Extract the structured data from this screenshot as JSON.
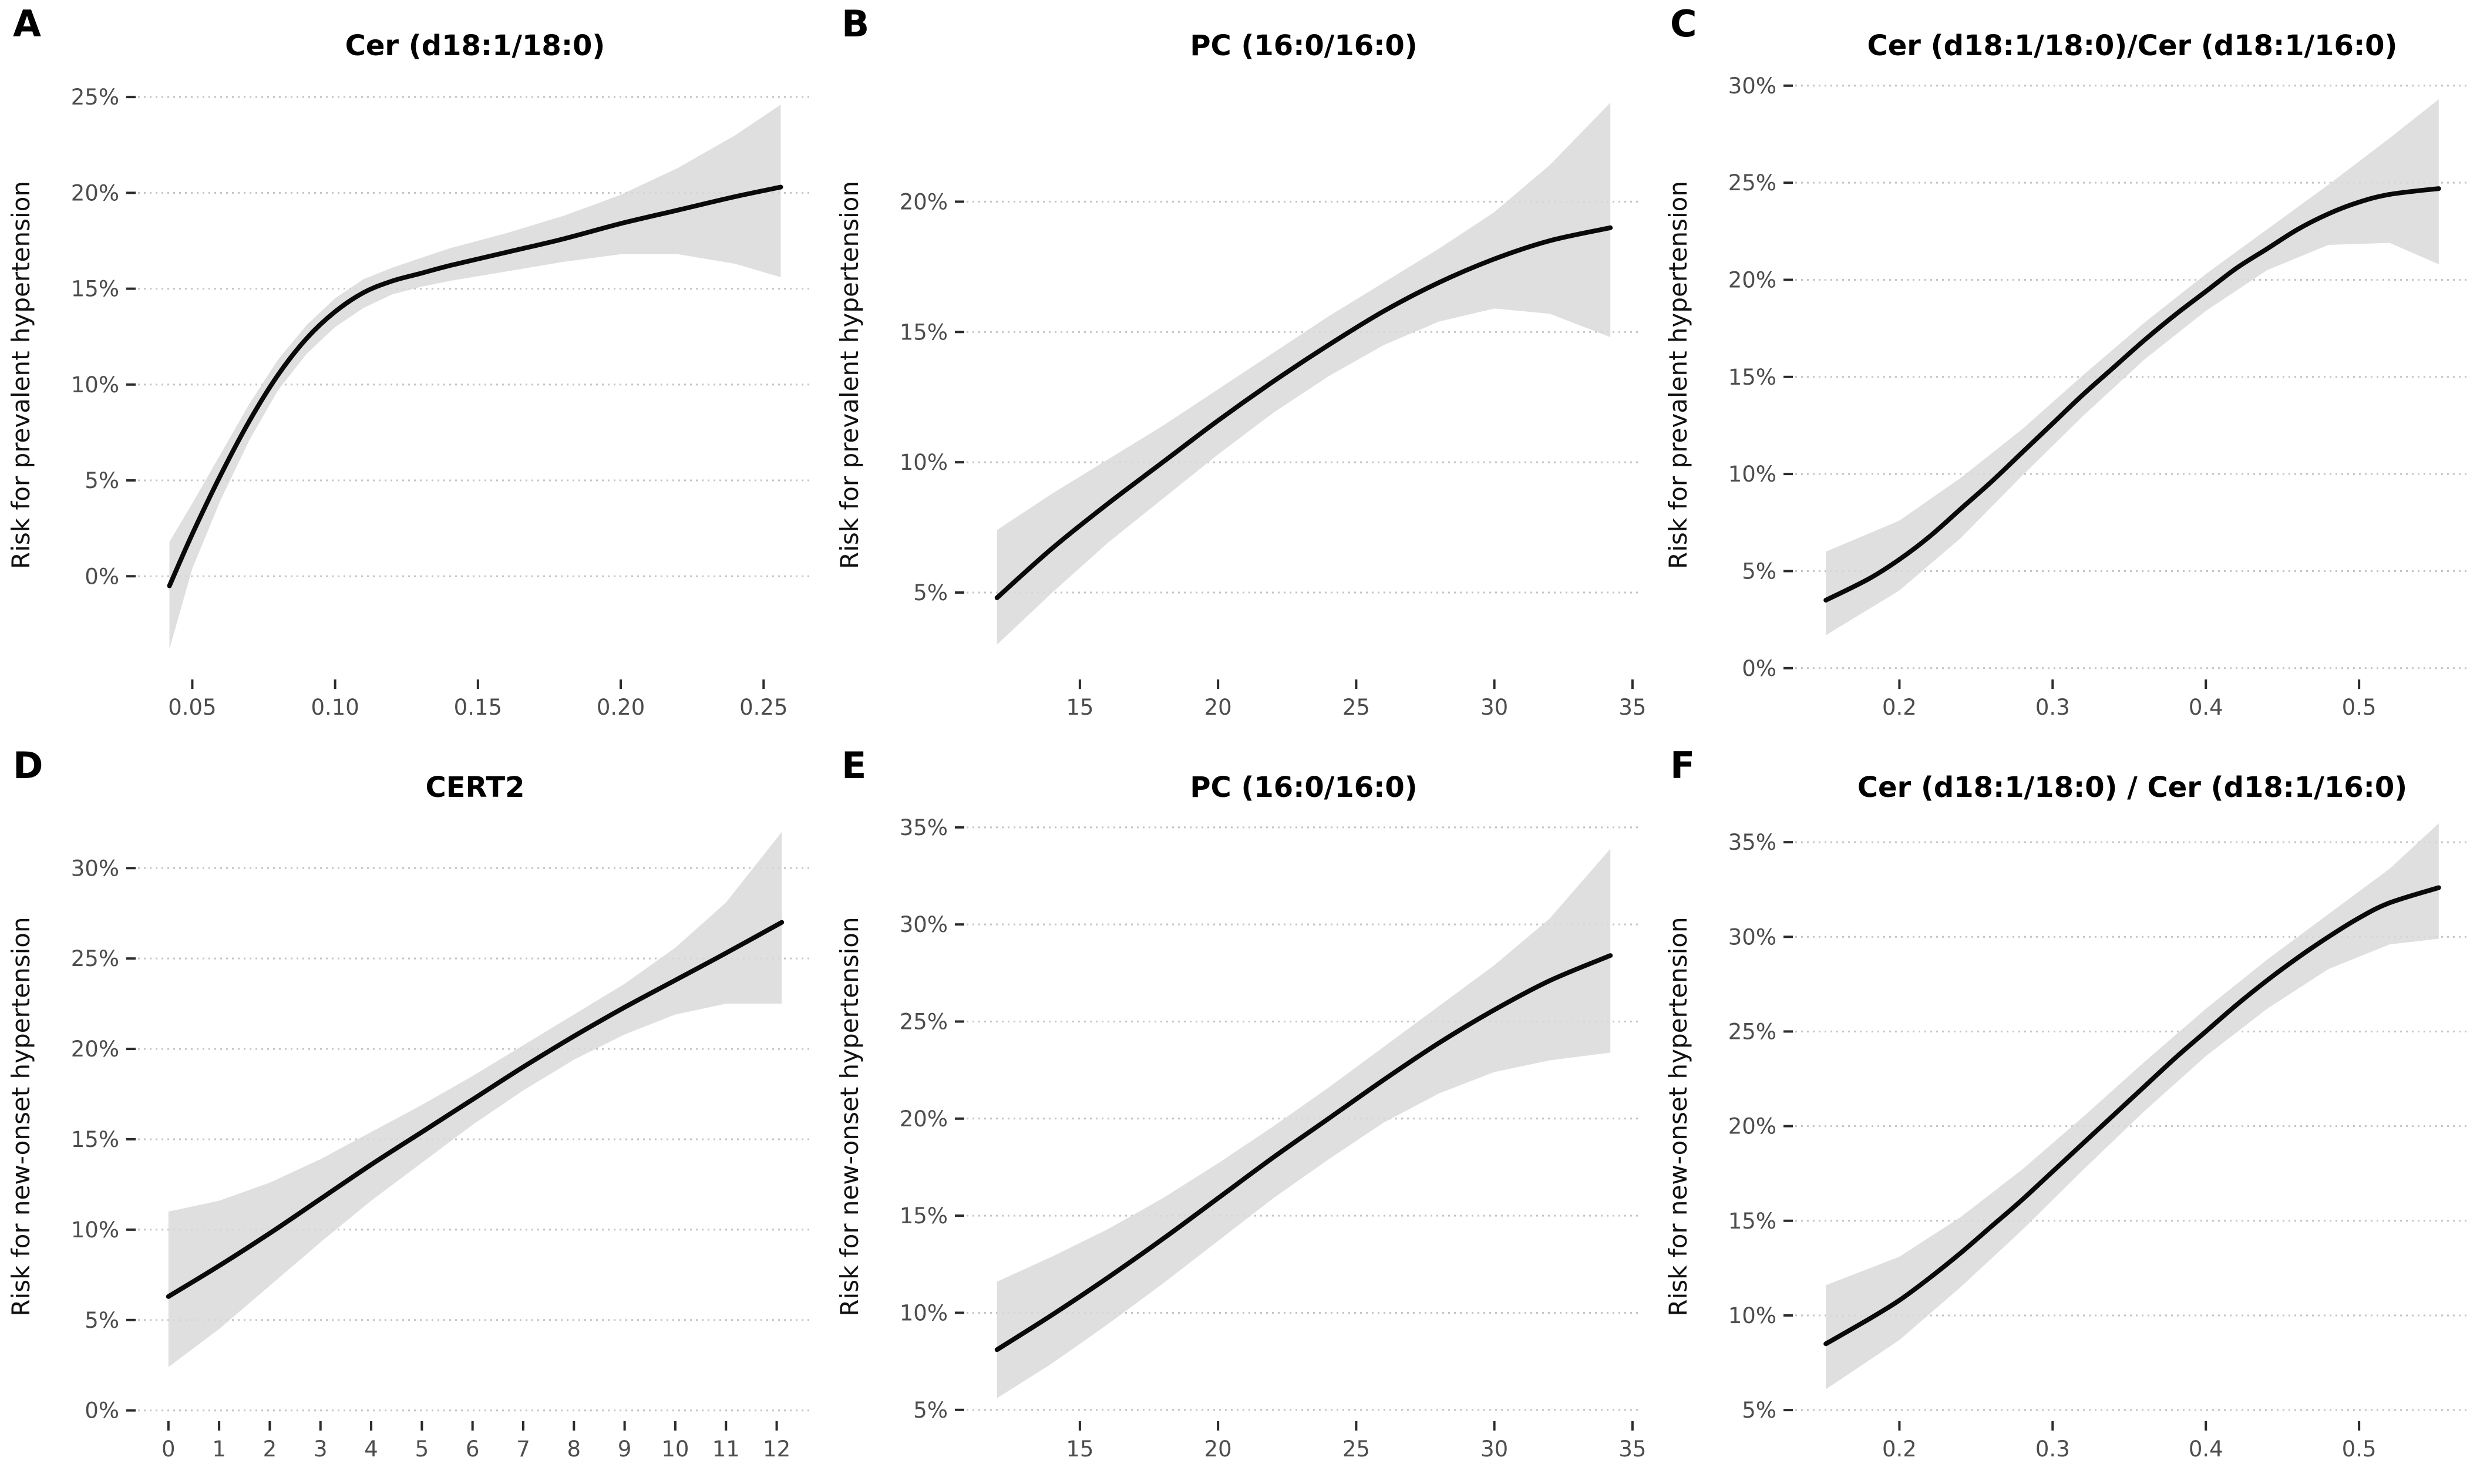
{
  "figure": {
    "background": "#ffffff",
    "styles": {
      "curve_color": "#0a0a0a",
      "band_color": "#d9d9d9",
      "band_opacity": 0.85,
      "gridline_color": "#c4c4c4",
      "tick_color": "#2b2b2b",
      "tick_label_color": "#4d4d4d",
      "axis_title_color": "#111111",
      "title_color": "#000000"
    }
  },
  "chart_data": [
    {
      "panel_letter": "A",
      "type": "line",
      "title": "Cer (d18:1/18:0)",
      "xlabel": "",
      "ylabel": "Risk for prevalent hypertension",
      "grid": "horizontal-dotted",
      "legend": "none",
      "xlim": [
        0.031,
        0.267
      ],
      "ylim": [
        -5.2,
        26.2
      ],
      "xticks": [
        0.05,
        0.1,
        0.15,
        0.2,
        0.25
      ],
      "xtick_labels": [
        "0.05",
        "0.10",
        "0.15",
        "0.20",
        "0.25"
      ],
      "yticks": [
        0,
        5,
        10,
        15,
        20,
        25
      ],
      "ytick_labels": [
        "0%",
        "5%",
        "10%",
        "15%",
        "20%",
        "25%"
      ],
      "series": [
        {
          "name": "estimated risk",
          "x": [
            0.042,
            0.05,
            0.06,
            0.07,
            0.08,
            0.09,
            0.1,
            0.11,
            0.12,
            0.13,
            0.14,
            0.16,
            0.18,
            0.2,
            0.22,
            0.24,
            0.256
          ],
          "y": [
            -0.5,
            2.2,
            5.3,
            8.1,
            10.5,
            12.4,
            13.8,
            14.8,
            15.4,
            15.8,
            16.2,
            16.9,
            17.6,
            18.4,
            19.1,
            19.8,
            20.3
          ]
        }
      ],
      "band": {
        "name": "95% confidence band",
        "x": [
          0.042,
          0.05,
          0.06,
          0.07,
          0.08,
          0.09,
          0.1,
          0.11,
          0.12,
          0.13,
          0.14,
          0.16,
          0.18,
          0.2,
          0.22,
          0.24,
          0.256
        ],
        "upper": [
          1.8,
          3.8,
          6.4,
          9.0,
          11.3,
          13.1,
          14.5,
          15.5,
          16.1,
          16.6,
          17.1,
          17.9,
          18.8,
          19.9,
          21.3,
          23.0,
          24.6
        ],
        "lower": [
          -3.8,
          0.4,
          4.0,
          7.1,
          9.7,
          11.6,
          13.0,
          14.0,
          14.7,
          15.1,
          15.4,
          15.9,
          16.4,
          16.8,
          16.8,
          16.3,
          15.6
        ]
      }
    },
    {
      "panel_letter": "B",
      "type": "line",
      "title": "PC (16:0/16:0)",
      "xlabel": "",
      "ylabel": "Risk for prevalent hypertension",
      "grid": "horizontal-dotted",
      "legend": "none",
      "xlim": [
        10.9,
        35.3
      ],
      "ylim": [
        1.8,
        24.9
      ],
      "xticks": [
        15,
        20,
        25,
        30,
        35
      ],
      "xtick_labels": [
        "15",
        "20",
        "25",
        "30",
        "35"
      ],
      "yticks": [
        5,
        10,
        15,
        20
      ],
      "ytick_labels": [
        "5%",
        "10%",
        "15%",
        "20%"
      ],
      "series": [
        {
          "name": "estimated risk",
          "x": [
            12,
            14,
            16,
            18,
            20,
            22,
            24,
            26,
            28,
            30,
            32,
            34.2
          ],
          "y": [
            4.8,
            6.7,
            8.4,
            10.0,
            11.6,
            13.1,
            14.5,
            15.8,
            16.9,
            17.8,
            18.5,
            19.0
          ]
        }
      ],
      "band": {
        "name": "95% confidence band",
        "x": [
          12,
          14,
          16,
          18,
          20,
          22,
          24,
          26,
          28,
          30,
          32,
          34.2
        ],
        "upper": [
          7.4,
          8.8,
          10.1,
          11.4,
          12.8,
          14.2,
          15.6,
          16.9,
          18.2,
          19.6,
          21.4,
          23.8
        ],
        "lower": [
          3.0,
          5.0,
          6.9,
          8.6,
          10.3,
          11.9,
          13.3,
          14.5,
          15.4,
          15.9,
          15.7,
          14.8
        ]
      }
    },
    {
      "panel_letter": "C",
      "type": "line",
      "title": "Cer (d18:1/18:0)/Cer (d18:1/16:0)",
      "xlabel": "",
      "ylabel": "Risk for prevalent hypertension",
      "grid": "horizontal-dotted",
      "legend": "none",
      "xlim": [
        0.132,
        0.572
      ],
      "ylim": [
        -0.4,
        30.6
      ],
      "xticks": [
        0.2,
        0.3,
        0.4,
        0.5
      ],
      "xtick_labels": [
        "0.2",
        "0.3",
        "0.4",
        "0.5"
      ],
      "yticks": [
        0,
        5,
        10,
        15,
        20,
        25,
        30
      ],
      "ytick_labels": [
        "0%",
        "5%",
        "10%",
        "15%",
        "20%",
        "25%",
        "30%"
      ],
      "series": [
        {
          "name": "estimated risk",
          "x": [
            0.152,
            0.18,
            0.2,
            0.22,
            0.24,
            0.26,
            0.28,
            0.3,
            0.32,
            0.34,
            0.36,
            0.38,
            0.4,
            0.42,
            0.44,
            0.46,
            0.48,
            0.5,
            0.52,
            0.552
          ],
          "y": [
            3.5,
            4.6,
            5.6,
            6.8,
            8.2,
            9.6,
            11.1,
            12.6,
            14.1,
            15.5,
            16.9,
            18.2,
            19.4,
            20.6,
            21.6,
            22.6,
            23.4,
            24.0,
            24.4,
            24.7
          ]
        }
      ],
      "band": {
        "name": "95% confidence band",
        "x": [
          0.152,
          0.2,
          0.24,
          0.28,
          0.32,
          0.36,
          0.4,
          0.44,
          0.48,
          0.52,
          0.552
        ],
        "upper": [
          6.0,
          7.6,
          9.8,
          12.3,
          15.1,
          17.8,
          20.3,
          22.6,
          24.9,
          27.3,
          29.3
        ],
        "lower": [
          1.7,
          4.0,
          6.7,
          9.9,
          13.0,
          15.9,
          18.4,
          20.5,
          21.8,
          21.9,
          20.8
        ]
      }
    },
    {
      "panel_letter": "D",
      "type": "line",
      "title": "CERT2",
      "xlabel": "",
      "ylabel": "Risk for new-onset hypertension",
      "grid": "horizontal-dotted",
      "legend": "none",
      "xlim": [
        -0.6,
        12.7
      ],
      "ylim": [
        -0.4,
        32.9
      ],
      "xticks": [
        0,
        1,
        2,
        3,
        4,
        5,
        6,
        7,
        8,
        9,
        10,
        11,
        12
      ],
      "xtick_labels": [
        "0",
        "1",
        "2",
        "3",
        "4",
        "5",
        "6",
        "7",
        "8",
        "9",
        "10",
        "11",
        "12"
      ],
      "yticks": [
        0,
        5,
        10,
        15,
        20,
        25,
        30
      ],
      "ytick_labels": [
        "0%",
        "5%",
        "10%",
        "15%",
        "20%",
        "25%",
        "30%"
      ],
      "series": [
        {
          "name": "estimated risk",
          "x": [
            0,
            1,
            2,
            3,
            4,
            5,
            6,
            7,
            8,
            9,
            10,
            11,
            12.1
          ],
          "y": [
            6.3,
            8.0,
            9.8,
            11.7,
            13.6,
            15.4,
            17.2,
            19.0,
            20.7,
            22.3,
            23.8,
            25.3,
            27.0
          ]
        }
      ],
      "band": {
        "name": "95% confidence band",
        "x": [
          0,
          1,
          2,
          3,
          4,
          5,
          6,
          7,
          8,
          9,
          10,
          11,
          12.1
        ],
        "upper": [
          11.0,
          11.6,
          12.6,
          13.9,
          15.4,
          16.9,
          18.5,
          20.2,
          21.9,
          23.6,
          25.6,
          28.1,
          32.0
        ],
        "lower": [
          2.4,
          4.5,
          6.9,
          9.3,
          11.6,
          13.7,
          15.8,
          17.7,
          19.4,
          20.8,
          21.9,
          22.5,
          22.5
        ]
      }
    },
    {
      "panel_letter": "E",
      "type": "line",
      "title": "PC (16:0/16:0)",
      "xlabel": "",
      "ylabel": "Risk for new-onset hypertension",
      "grid": "horizontal-dotted",
      "legend": "none",
      "xlim": [
        10.9,
        35.3
      ],
      "ylim": [
        4.6,
        35.6
      ],
      "xticks": [
        15,
        20,
        25,
        30,
        35
      ],
      "xtick_labels": [
        "15",
        "20",
        "25",
        "30",
        "35"
      ],
      "yticks": [
        5,
        10,
        15,
        20,
        25,
        30,
        35
      ],
      "ytick_labels": [
        "5%",
        "10%",
        "15%",
        "20%",
        "25%",
        "30%",
        "35%"
      ],
      "series": [
        {
          "name": "estimated risk",
          "x": [
            12,
            14,
            16,
            18,
            20,
            22,
            24,
            26,
            28,
            30,
            32,
            34.2
          ],
          "y": [
            8.1,
            9.9,
            11.8,
            13.8,
            15.9,
            18.0,
            20.0,
            22.0,
            23.9,
            25.6,
            27.1,
            28.4
          ]
        }
      ],
      "band": {
        "name": "95% confidence band",
        "x": [
          12,
          14,
          16,
          18,
          20,
          22,
          24,
          26,
          28,
          30,
          32,
          34.2
        ],
        "upper": [
          11.6,
          12.9,
          14.3,
          15.9,
          17.7,
          19.6,
          21.6,
          23.7,
          25.8,
          27.9,
          30.3,
          33.9
        ],
        "lower": [
          5.6,
          7.4,
          9.4,
          11.5,
          13.7,
          15.9,
          17.9,
          19.8,
          21.3,
          22.4,
          23.0,
          23.4
        ]
      }
    },
    {
      "panel_letter": "F",
      "type": "line",
      "title": "Cer (d18:1/18:0) / Cer (d18:1/16:0)",
      "xlabel": "",
      "ylabel": "Risk for new-onset hypertension",
      "grid": "horizontal-dotted",
      "legend": "none",
      "xlim": [
        0.132,
        0.572
      ],
      "ylim": [
        4.6,
        36.4
      ],
      "xticks": [
        0.2,
        0.3,
        0.4,
        0.5
      ],
      "xtick_labels": [
        "0.2",
        "0.3",
        "0.4",
        "0.5"
      ],
      "yticks": [
        5,
        10,
        15,
        20,
        25,
        30,
        35
      ],
      "ytick_labels": [
        "5%",
        "10%",
        "15%",
        "20%",
        "25%",
        "30%",
        "35%"
      ],
      "series": [
        {
          "name": "estimated risk",
          "x": [
            0.152,
            0.18,
            0.2,
            0.22,
            0.24,
            0.26,
            0.28,
            0.3,
            0.32,
            0.34,
            0.36,
            0.38,
            0.4,
            0.42,
            0.44,
            0.46,
            0.48,
            0.5,
            0.52,
            0.552
          ],
          "y": [
            8.5,
            9.8,
            10.8,
            12.0,
            13.3,
            14.7,
            16.1,
            17.6,
            19.1,
            20.6,
            22.1,
            23.6,
            25.0,
            26.4,
            27.7,
            28.9,
            30.0,
            31.0,
            31.8,
            32.6
          ]
        }
      ],
      "band": {
        "name": "95% confidence band",
        "x": [
          0.152,
          0.2,
          0.24,
          0.28,
          0.32,
          0.36,
          0.4,
          0.44,
          0.48,
          0.52,
          0.552
        ],
        "upper": [
          11.6,
          13.1,
          15.2,
          17.7,
          20.5,
          23.4,
          26.2,
          28.8,
          31.2,
          33.6,
          36.0
        ],
        "lower": [
          6.1,
          8.7,
          11.5,
          14.5,
          17.7,
          20.8,
          23.7,
          26.2,
          28.3,
          29.6,
          29.9
        ]
      }
    }
  ]
}
